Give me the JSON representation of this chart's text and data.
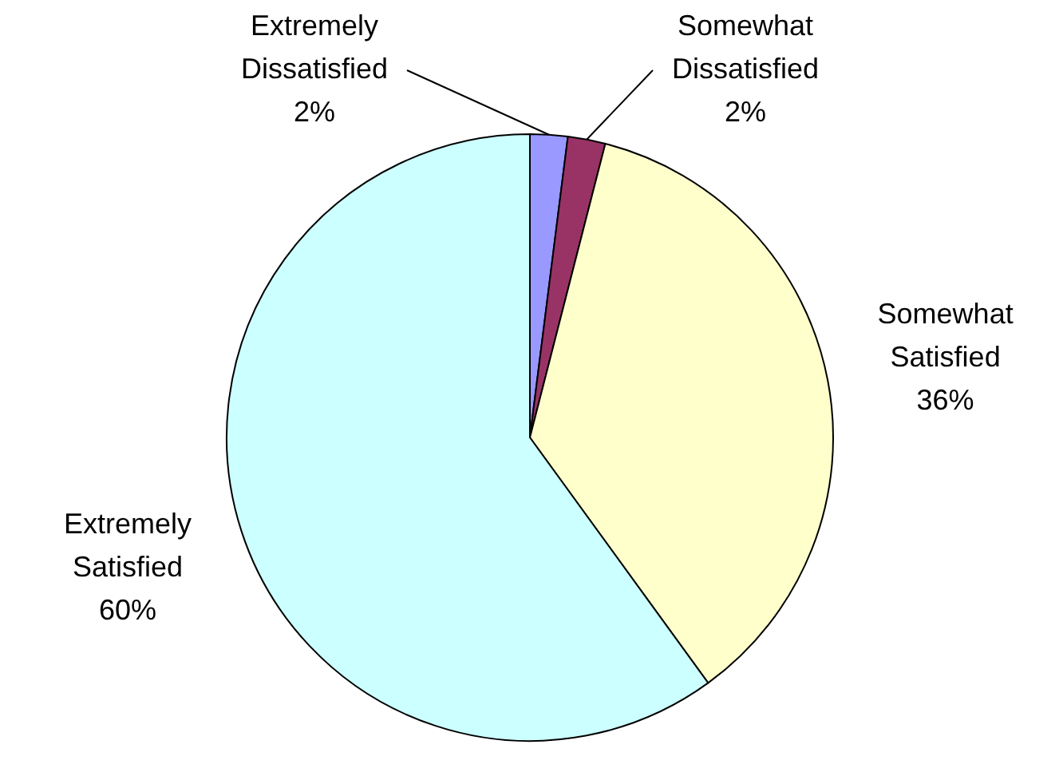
{
  "chart_data": {
    "type": "pie",
    "categories": [
      "Extremely Dissatisfied",
      "Somewhat Dissatisfied",
      "Somewhat Satisfied",
      "Extremely Satisfied"
    ],
    "values": [
      2,
      2,
      36,
      60
    ],
    "value_labels": [
      "2%",
      "2%",
      "36%",
      "60%"
    ],
    "colors": [
      "#9999ff",
      "#993366",
      "#ffffcc",
      "#ccffff"
    ]
  }
}
